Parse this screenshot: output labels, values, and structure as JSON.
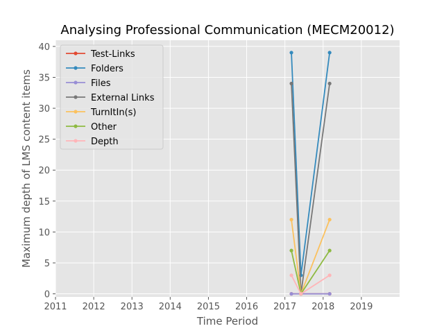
{
  "chart_data": {
    "type": "line",
    "title": "Analysing Professional Communication (MECM20012)",
    "xlabel": "Time Period",
    "ylabel": "Maximum depth of LMS content items",
    "xlim": [
      2011,
      2020
    ],
    "ylim": [
      -0.5,
      41
    ],
    "x_ticks": [
      "2011",
      "2012",
      "2013",
      "2014",
      "2015",
      "2016",
      "2017",
      "2018",
      "2019"
    ],
    "y_ticks": [
      "0",
      "5",
      "10",
      "15",
      "20",
      "25",
      "30",
      "35",
      "40"
    ],
    "grid": true,
    "legend_position": "top-left",
    "x": [
      2017.17,
      2017.42,
      2018.17
    ],
    "series": [
      {
        "name": "Test-Links",
        "color": "#E24A33",
        "values": [
          0,
          0,
          0
        ]
      },
      {
        "name": "Folders",
        "color": "#348ABD",
        "values": [
          39,
          3,
          39
        ]
      },
      {
        "name": "Files",
        "color": "#988ED5",
        "values": [
          0,
          0,
          0
        ]
      },
      {
        "name": "External Links",
        "color": "#777777",
        "values": [
          34,
          0,
          34
        ]
      },
      {
        "name": "TurnItIn(s)",
        "color": "#FBC15E",
        "values": [
          12,
          0,
          12
        ]
      },
      {
        "name": "Other",
        "color": "#8EBA42",
        "values": [
          7,
          0,
          7
        ]
      },
      {
        "name": "Depth",
        "color": "#FFB5B8",
        "values": [
          3,
          0,
          3
        ]
      }
    ]
  }
}
